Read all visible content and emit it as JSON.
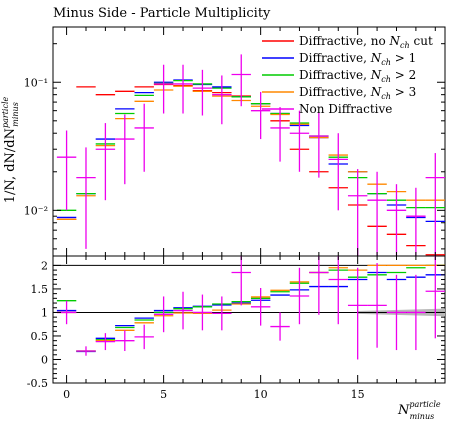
{
  "chart_data": {
    "type": "scatter",
    "title": "Minus Side - Particle Multiplicity",
    "xlabel": "N",
    "xlabel_sup": "particle",
    "xlabel_sub": "minus",
    "ylabel": "1/N, dN/dN",
    "ylabel_sup": "particle",
    "ylabel_sub": "minus",
    "xlim": [
      -0.7,
      19.5
    ],
    "main": {
      "scale": "log",
      "ylim": [
        0.0044,
        0.27
      ],
      "yticks": [
        {
          "value": 0.01,
          "label": "10⁻²"
        },
        {
          "value": 0.1,
          "label": "10⁻¹"
        }
      ]
    },
    "ratio": {
      "ylim": [
        -0.5,
        2.2
      ],
      "yticks": [
        -0.5,
        0,
        0.5,
        1,
        1.5,
        2
      ],
      "reference_line": 1,
      "band": {
        "x": [
          15,
          19.5
        ],
        "lo": [
          0.97,
          0.92
        ],
        "hi": [
          1.03,
          1.08
        ]
      }
    },
    "xticks": [
      0,
      5,
      10,
      15
    ],
    "legend": {
      "position": "top-right"
    },
    "series": [
      {
        "name": "Diffractive, no N cut",
        "name_sub": "ch",
        "color": "#ff0000",
        "values": [
          0.0085,
          0.092,
          0.08,
          0.085,
          0.092,
          0.096,
          0.094,
          0.086,
          0.083,
          0.078,
          0.068,
          0.05,
          0.03,
          0.02,
          0.015,
          0.011,
          0.0075,
          0.0065,
          0.0053,
          0.0045
        ],
        "errors": [
          0,
          0,
          0,
          0,
          0,
          0,
          0,
          0,
          0,
          0,
          0,
          0,
          0,
          0,
          0,
          0,
          0,
          0,
          0,
          0
        ]
      },
      {
        "name": "Diffractive, N > 1",
        "name_sub": "ch",
        "color": "#0000ff",
        "values": [
          0.0088,
          0.0135,
          0.036,
          0.062,
          0.083,
          0.1,
          0.104,
          0.096,
          0.092,
          0.077,
          0.068,
          0.057,
          0.046,
          0.037,
          0.023,
          0.02,
          0.0135,
          0.011,
          0.0088,
          0.0082
        ],
        "ratio": [
          1.04,
          0.17,
          0.45,
          0.72,
          0.88,
          1.04,
          1.1,
          1.13,
          1.16,
          1.2,
          1.26,
          1.37,
          1.48,
          1.55,
          1.55,
          1.7,
          1.85,
          1.7,
          1.75,
          1.8
        ]
      },
      {
        "name": "Diffractive, N > 2",
        "name_sub": "ch",
        "color": "#00cc00",
        "values": [
          0.01,
          0.0135,
          0.033,
          0.057,
          0.079,
          0.098,
          0.103,
          0.097,
          0.09,
          0.077,
          0.068,
          0.057,
          0.048,
          0.038,
          0.026,
          0.018,
          0.0135,
          0.012,
          0.0105,
          0.0105
        ],
        "ratio": [
          1.25,
          0.18,
          0.42,
          0.68,
          0.84,
          1.0,
          1.08,
          1.12,
          1.18,
          1.23,
          1.3,
          1.44,
          1.62,
          1.85,
          1.9,
          1.75,
          1.8,
          1.85,
          1.95,
          2.0
        ]
      },
      {
        "name": "Diffractive, N > 3",
        "name_sub": "ch",
        "color": "#ff8800",
        "values": [
          0.0085,
          0.013,
          0.032,
          0.052,
          0.071,
          0.087,
          0.093,
          0.085,
          0.078,
          0.072,
          0.065,
          0.056,
          0.047,
          0.037,
          0.027,
          0.02,
          0.016,
          0.014,
          0.012,
          0.012
        ],
        "ratio": [
          1.0,
          0.18,
          0.4,
          0.62,
          0.78,
          0.93,
          0.99,
          0.98,
          1.05,
          1.18,
          1.33,
          1.47,
          1.65,
          1.85,
          1.95,
          1.9,
          2.0,
          2.0,
          2.0,
          2.0
        ]
      },
      {
        "name": "Non Diffractive",
        "name_sub": "",
        "color": "#ee00ee",
        "values": [
          0.026,
          0.018,
          0.03,
          0.036,
          0.044,
          0.097,
          0.097,
          0.09,
          0.08,
          0.115,
          0.06,
          0.044,
          0.04,
          0.038,
          0.025,
          0.013,
          0.012,
          0.01,
          0.009,
          0.018
        ],
        "err_lo": [
          0.016,
          0.013,
          0.018,
          0.02,
          0.024,
          0.04,
          0.04,
          0.035,
          0.033,
          0.05,
          0.024,
          0.02,
          0.02,
          0.02,
          0.015,
          0.009,
          0.009,
          0.006,
          0.006,
          0.014
        ],
        "err_hi": [
          0.016,
          0.013,
          0.018,
          0.02,
          0.024,
          0.04,
          0.04,
          0.035,
          0.033,
          0.05,
          0.024,
          0.02,
          0.02,
          0.02,
          0.015,
          0.008,
          0.008,
          0.006,
          0.006,
          0.01
        ],
        "ratio": [
          1.0,
          0.18,
          0.38,
          0.4,
          0.48,
          0.96,
          1.04,
          1.0,
          0.98,
          1.85,
          1.12,
          0.7,
          1.35,
          1.85,
          1.7,
          1.15,
          1.15,
          1.0,
          1.0,
          1.45
        ],
        "ratio_err_lo": [
          0.25,
          0.1,
          0.18,
          0.22,
          0.26,
          0.38,
          0.4,
          0.38,
          0.36,
          0.7,
          0.4,
          0.3,
          0.6,
          0.9,
          0.95,
          1.15,
          0.9,
          0.8,
          0.8,
          1.0
        ],
        "ratio_err_hi": [
          0.25,
          0.1,
          0.18,
          0.22,
          0.26,
          0.38,
          0.4,
          0.38,
          0.36,
          0.7,
          0.4,
          0.3,
          0.6,
          0.9,
          0.95,
          0.8,
          0.9,
          0.8,
          0.8,
          1.0
        ]
      }
    ]
  }
}
